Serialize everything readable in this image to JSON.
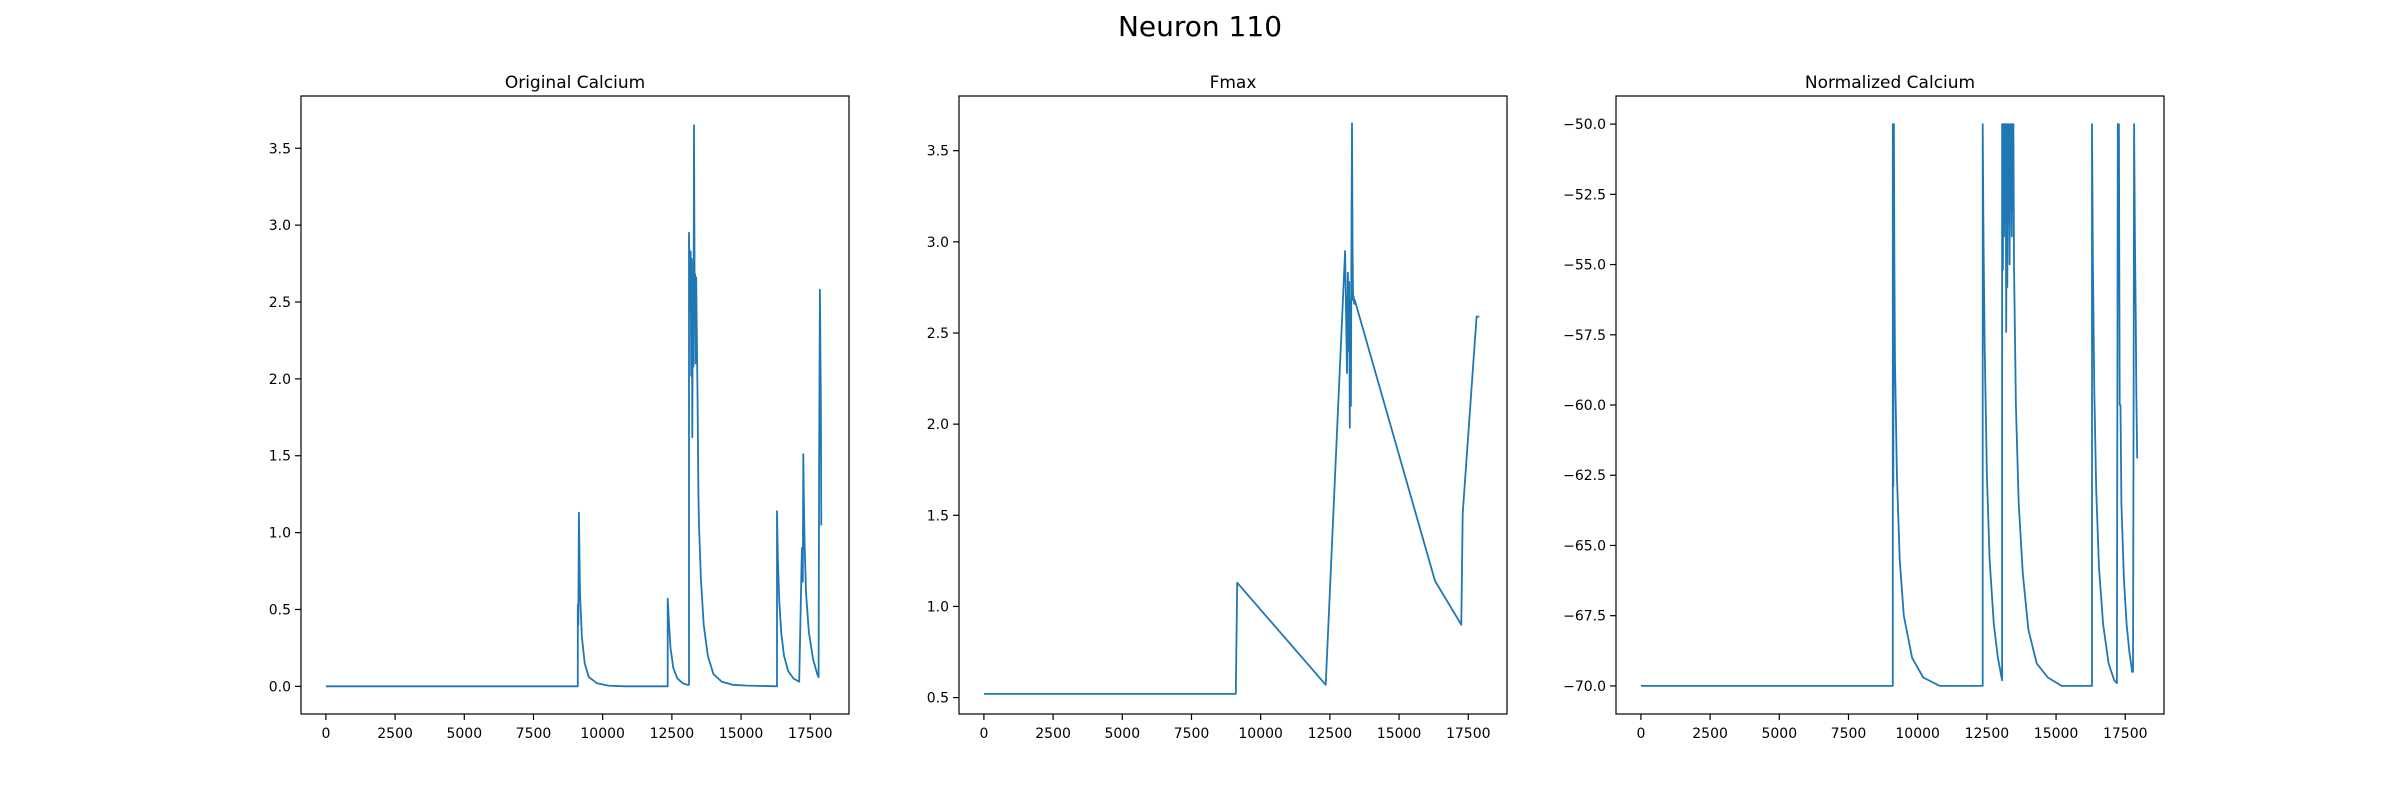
{
  "figure": {
    "title": "Neuron 110"
  },
  "chart_data": [
    {
      "type": "line",
      "title": "Original Calcium",
      "xlabel": "",
      "ylabel": "",
      "xlim": [
        -900,
        18900
      ],
      "ylim": [
        -0.18,
        3.84
      ],
      "xticks": [
        0,
        2500,
        5000,
        7500,
        10000,
        12500,
        15000,
        17500
      ],
      "xtick_labels": [
        "0",
        "2500",
        "5000",
        "7500",
        "10000",
        "12500",
        "15000",
        "17500"
      ],
      "yticks": [
        0,
        0.5,
        1.0,
        1.5,
        2.0,
        2.5,
        3.0,
        3.5
      ],
      "ytick_labels": [
        "0.0",
        "0.5",
        "1.0",
        "1.5",
        "2.0",
        "2.5",
        "3.0",
        "3.5"
      ],
      "grid": false,
      "line_color": "#1f77b4",
      "series": [
        {
          "x": [
            0,
            9100,
            9100,
            9120,
            9140,
            9160,
            9180,
            9250,
            9350,
            9500,
            9800,
            10200,
            10800,
            12350,
            12350,
            12400,
            12450,
            12550,
            12700,
            12900,
            13050,
            13120,
            13120,
            13150,
            13180,
            13200,
            13220,
            13240,
            13260,
            13280,
            13300,
            13320,
            13340,
            13360,
            13380,
            13400,
            13430,
            13460,
            13480,
            13550,
            13650,
            13800,
            14000,
            14300,
            14700,
            15200,
            16300,
            16300,
            16330,
            16380,
            16450,
            16550,
            16700,
            16900,
            17100,
            17200,
            17230,
            17250,
            17270,
            17300,
            17350,
            17450,
            17600,
            17750,
            17800,
            17820,
            17850,
            17880,
            17900,
            17910
          ],
          "y": [
            0,
            0,
            0.53,
            0.4,
            1.13,
            0.9,
            0.6,
            0.32,
            0.15,
            0.06,
            0.02,
            0.005,
            0,
            0,
            0.57,
            0.4,
            0.25,
            0.12,
            0.05,
            0.02,
            0.01,
            0.01,
            2.95,
            2.45,
            2.83,
            2.02,
            2.78,
            1.62,
            2.68,
            2.08,
            3.65,
            2.62,
            2.68,
            2.1,
            2.66,
            2.3,
            1.85,
            1.25,
            1.05,
            0.7,
            0.4,
            0.2,
            0.08,
            0.03,
            0.01,
            0.005,
            0,
            1.14,
            0.82,
            0.55,
            0.35,
            0.2,
            0.1,
            0.05,
            0.03,
            0.9,
            0.68,
            1.51,
            1.2,
            0.9,
            0.6,
            0.35,
            0.18,
            0.08,
            0.06,
            1.4,
            2.58,
            1.9,
            1.05,
            1.05
          ]
        }
      ]
    },
    {
      "type": "line",
      "title": "Fmax",
      "xlabel": "",
      "ylabel": "",
      "xlim": [
        -900,
        18900
      ],
      "ylim": [
        0.41,
        3.8
      ],
      "xticks": [
        0,
        2500,
        5000,
        7500,
        10000,
        12500,
        15000,
        17500
      ],
      "xtick_labels": [
        "0",
        "2500",
        "5000",
        "7500",
        "10000",
        "12500",
        "15000",
        "17500"
      ],
      "yticks": [
        0.5,
        1.0,
        1.5,
        2.0,
        2.5,
        3.0,
        3.5
      ],
      "ytick_labels": [
        "0.5",
        "1.0",
        "1.5",
        "2.0",
        "2.5",
        "3.0",
        "3.5"
      ],
      "grid": false,
      "line_color": "#1f77b4",
      "series": [
        {
          "x": [
            0,
            9100,
            9150,
            12350,
            13050,
            13120,
            13150,
            13180,
            13200,
            13220,
            13240,
            13260,
            13280,
            13300,
            13320,
            13340,
            13360,
            13380,
            13400,
            16300,
            17250,
            17300,
            17800,
            17900
          ],
          "y": [
            0.52,
            0.52,
            1.13,
            0.57,
            2.95,
            2.28,
            2.83,
            2.4,
            2.78,
            1.98,
            2.68,
            2.1,
            3.1,
            3.65,
            2.95,
            2.68,
            2.7,
            2.66,
            2.68,
            1.14,
            0.9,
            1.51,
            2.59,
            2.59
          ]
        }
      ]
    },
    {
      "type": "line",
      "title": "Normalized Calcium",
      "xlabel": "",
      "ylabel": "",
      "xlim": [
        -900,
        18900
      ],
      "ylim": [
        -71.0,
        -49.0
      ],
      "xticks": [
        0,
        2500,
        5000,
        7500,
        10000,
        12500,
        15000,
        17500
      ],
      "xtick_labels": [
        "0",
        "2500",
        "5000",
        "7500",
        "10000",
        "12500",
        "15000",
        "17500"
      ],
      "yticks": [
        -50.0,
        -52.5,
        -55.0,
        -57.5,
        -60.0,
        -62.5,
        -65.0,
        -67.5,
        -70.0
      ],
      "ytick_labels": [
        "−50.0",
        "−52.5",
        "−55.0",
        "−57.5",
        "−60.0",
        "−62.5",
        "−65.0",
        "−67.5",
        "−70.0"
      ],
      "grid": false,
      "line_color": "#1f77b4",
      "series": [
        {
          "x": [
            0,
            9100,
            9100,
            9120,
            9140,
            9160,
            9180,
            9250,
            9350,
            9500,
            9800,
            10200,
            10800,
            12350,
            12350,
            12380,
            12420,
            12500,
            12600,
            12750,
            12900,
            13050,
            13050,
            13080,
            13100,
            13120,
            13140,
            13160,
            13180,
            13200,
            13220,
            13240,
            13260,
            13280,
            13300,
            13320,
            13340,
            13360,
            13380,
            13400,
            13420,
            13440,
            13460,
            13480,
            13550,
            13650,
            13800,
            14000,
            14300,
            14700,
            15200,
            16300,
            16300,
            16330,
            16380,
            16450,
            16550,
            16700,
            16900,
            17100,
            17200,
            17230,
            17250,
            17270,
            17300,
            17330,
            17360,
            17450,
            17550,
            17650,
            17750,
            17780,
            17800,
            17820,
            17850,
            17880,
            17900,
            17930
          ],
          "y": [
            -70.0,
            -70.0,
            -50.0,
            -62.9,
            -50.0,
            -55.0,
            -58.5,
            -62.5,
            -65.5,
            -67.5,
            -69.0,
            -69.7,
            -70.0,
            -70.0,
            -50.0,
            -54.0,
            -58.0,
            -62.5,
            -65.5,
            -67.8,
            -69.0,
            -69.8,
            -50.0,
            -55.2,
            -50.0,
            -54.0,
            -50.0,
            -53.0,
            -50.0,
            -57.4,
            -50.0,
            -55.8,
            -50.0,
            -53.5,
            -50.0,
            -55.0,
            -50.0,
            -53.0,
            -50.0,
            -54.0,
            -50.0,
            -53.0,
            -50.0,
            -55.0,
            -60.0,
            -63.5,
            -66.0,
            -68.0,
            -69.2,
            -69.7,
            -70.0,
            -70.0,
            -50.0,
            -55.0,
            -59.5,
            -63.0,
            -65.8,
            -67.8,
            -69.2,
            -69.8,
            -69.9,
            -50.0,
            -53.0,
            -50.0,
            -60.0,
            -60.0,
            -63.5,
            -66.2,
            -67.8,
            -68.8,
            -69.5,
            -69.5,
            -60.0,
            -50.0,
            -54.0,
            -57.0,
            -59.5,
            -61.9
          ]
        }
      ]
    }
  ]
}
